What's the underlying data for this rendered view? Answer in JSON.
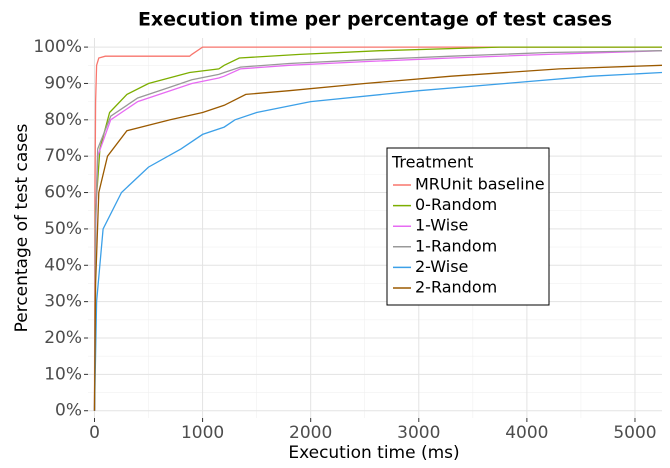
{
  "chart_data": {
    "type": "line",
    "title": "Execution time per percentage of test cases",
    "x_label": "Execution time (ms)",
    "y_label": "Percentage of test cases",
    "legend_title": "Treatment",
    "legend_position": "right",
    "grid": true,
    "xlim": [
      -60,
      5250
    ],
    "ylim": [
      -2,
      102.5
    ],
    "xticks": [
      0,
      1000,
      2000,
      3000,
      4000,
      5000
    ],
    "x_minor_ticks": [
      500,
      1500,
      2500,
      3500,
      4500
    ],
    "yticks": [
      {
        "value": 0,
        "label": "0%"
      },
      {
        "value": 10,
        "label": "10%"
      },
      {
        "value": 20,
        "label": "20%"
      },
      {
        "value": 30,
        "label": "30%"
      },
      {
        "value": 40,
        "label": "40%"
      },
      {
        "value": 50,
        "label": "50%"
      },
      {
        "value": 60,
        "label": "60%"
      },
      {
        "value": 70,
        "label": "70%"
      },
      {
        "value": 80,
        "label": "80%"
      },
      {
        "value": 90,
        "label": "90%"
      },
      {
        "value": 100,
        "label": "100%"
      }
    ],
    "y_minor_ticks": [
      5,
      15,
      25,
      35,
      45,
      55,
      65,
      75,
      85,
      95
    ],
    "series": [
      {
        "name": "MRUnit baseline",
        "color": "#f8766d",
        "x": [
          0,
          5,
          10,
          20,
          40,
          100,
          880,
          900,
          1000,
          5250
        ],
        "values": [
          0,
          60,
          85,
          95,
          97,
          97.5,
          97.5,
          98,
          100,
          100
        ]
      },
      {
        "name": "0-Random",
        "color": "#7cae00",
        "x": [
          0,
          10,
          50,
          140,
          300,
          500,
          880,
          1150,
          1200,
          1340,
          1900,
          2640,
          3750,
          5250
        ],
        "values": [
          0,
          55,
          72,
          82,
          87,
          90,
          93,
          94,
          95,
          97,
          98,
          99,
          100,
          100
        ]
      },
      {
        "name": "1-Wise",
        "color": "#e76bf3",
        "x": [
          0,
          10,
          30,
          150,
          400,
          700,
          900,
          1150,
          1200,
          1350,
          1800,
          2500,
          3300,
          4200,
          5250
        ],
        "values": [
          0,
          50,
          70,
          80,
          85,
          88,
          90,
          91.5,
          92,
          94,
          95,
          96,
          97,
          98,
          99
        ]
      },
      {
        "name": "1-Random",
        "color": "#999999",
        "x": [
          0,
          10,
          30,
          150,
          400,
          700,
          900,
          1150,
          1200,
          1350,
          1800,
          2500,
          3300,
          4200,
          5250
        ],
        "values": [
          0,
          52,
          72,
          81,
          86,
          89,
          91,
          92.5,
          93,
          94.5,
          95.5,
          96.5,
          97.5,
          98.5,
          99
        ]
      },
      {
        "name": "2-Wise",
        "color": "#3ca0e8",
        "x": [
          0,
          20,
          80,
          250,
          500,
          800,
          1000,
          1200,
          1300,
          1500,
          2000,
          3000,
          3800,
          4600,
          5250
        ],
        "values": [
          0,
          30,
          50,
          60,
          67,
          72,
          76,
          78,
          80,
          82,
          85,
          88,
          90,
          92,
          93
        ]
      },
      {
        "name": "2-Random",
        "color": "#9b5a00",
        "x": [
          0,
          10,
          40,
          120,
          300,
          700,
          1000,
          1200,
          1400,
          1800,
          2500,
          3300,
          4300,
          5250
        ],
        "values": [
          0,
          35,
          60,
          70,
          77,
          80,
          82,
          84,
          87,
          88,
          90,
          92,
          94,
          95
        ]
      }
    ]
  }
}
